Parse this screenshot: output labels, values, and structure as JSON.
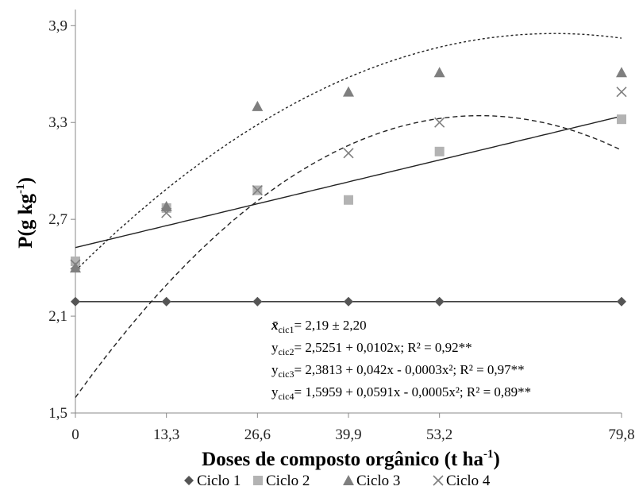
{
  "chart_data": {
    "type": "scatter",
    "xlabel": "Doses de composto orgânico (t ha",
    "xlabel_sup": "-1",
    "xlabel_end": ")",
    "ylabel": "P(g kg",
    "ylabel_sup": "-1",
    "ylabel_end": ")",
    "x_ticks": [
      "0",
      "13,3",
      "26,6",
      "39,9",
      "53,2",
      "79,8"
    ],
    "y_ticks": [
      "1,5",
      "2,1",
      "2,7",
      "3,3",
      "3,9"
    ],
    "x_values": [
      0,
      13.3,
      26.6,
      39.9,
      53.2,
      79.8
    ],
    "xlim": [
      0,
      79.8
    ],
    "ylim": [
      1.5,
      4.0
    ],
    "legend_position": "bottom",
    "series": [
      {
        "name": "Ciclo 1",
        "marker": "diamond",
        "color": "#555555",
        "values": [
          2.19,
          2.19,
          2.19,
          2.19,
          2.19,
          2.19
        ]
      },
      {
        "name": "Ciclo 2",
        "marker": "square",
        "color": "#b3b3b3",
        "values": [
          2.44,
          2.77,
          2.88,
          2.82,
          3.12,
          3.32
        ]
      },
      {
        "name": "Ciclo 3",
        "marker": "triangle",
        "color": "#7f7f7f",
        "values": [
          2.4,
          2.78,
          3.4,
          3.49,
          3.61,
          3.61
        ]
      },
      {
        "name": "Ciclo 4",
        "marker": "x",
        "color": "#7f7f7f",
        "values": [
          2.42,
          2.74,
          2.88,
          3.11,
          3.3,
          3.49
        ]
      }
    ],
    "fits": [
      {
        "series": "Ciclo 1",
        "style": "solid",
        "coef": [
          2.19,
          0,
          0
        ]
      },
      {
        "series": "Ciclo 2",
        "style": "solid",
        "coef": [
          2.5251,
          0.0102,
          0
        ]
      },
      {
        "series": "Ciclo 3",
        "style": "dotted",
        "coef": [
          2.3813,
          0.042,
          -0.0003
        ]
      },
      {
        "series": "Ciclo 4",
        "style": "dashed",
        "coef": [
          1.5959,
          0.0591,
          -0.0005
        ]
      }
    ],
    "annotations": [
      {
        "lead": "x̄",
        "sub": "cic1",
        "text": "= 2,19 ± 2,20"
      },
      {
        "lead": "y",
        "sub": "cic2",
        "text": "= 2,5251 + 0,0102x; R² = 0,92**"
      },
      {
        "lead": "y",
        "sub": "cic3",
        "text": "= 2,3813 + 0,042x - 0,0003x²; R² = 0,97**"
      },
      {
        "lead": "y",
        "sub": "cic4",
        "text": "= 1,5959 + 0,0591x - 0,0005x²; R² = 0,89**"
      }
    ]
  }
}
